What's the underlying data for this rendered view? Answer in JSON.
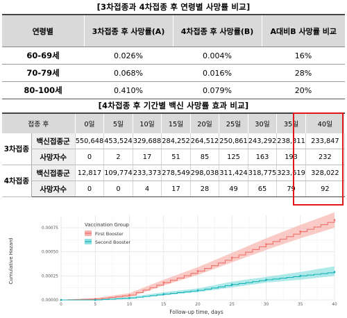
{
  "table1": {
    "caption": "[3차접종과 4차접종 후 연령별 사망률 비교]",
    "headers": [
      "연령별",
      "3차접종 후 사망률(A)",
      "4차접종 후 사망률(B)",
      "A대비B 사망률 비교"
    ],
    "rows": [
      {
        "label": "60-69세",
        "a": "0.026%",
        "b": "0.004%",
        "ratio": "16%"
      },
      {
        "label": "70-79세",
        "a": "0.068%",
        "b": "0.016%",
        "ratio": "28%"
      },
      {
        "label": "80-100세",
        "a": "0.410%",
        "b": "0.079%",
        "ratio": "20%"
      }
    ]
  },
  "table2": {
    "caption": "[4차접종 후 기간별 백신 사망률 효과 비교]",
    "corner": "접종 후",
    "days": [
      "0일",
      "5일",
      "10일",
      "15일",
      "20일",
      "25일",
      "30일",
      "35일",
      "40일"
    ],
    "groups": [
      {
        "name": "3차접종",
        "rows": [
          {
            "label": "백신접종군",
            "values": [
              "550,648",
              "453,524",
              "329,688",
              "284,252",
              "264,512",
              "250,861",
              "243,292",
              "238,311",
              "233,847"
            ]
          },
          {
            "label": "사망자수",
            "values": [
              "0",
              "2",
              "17",
              "51",
              "85",
              "125",
              "163",
              "193",
              "232"
            ]
          }
        ]
      },
      {
        "name": "4차접종",
        "rows": [
          {
            "label": "백신접종군",
            "values": [
              "12,817",
              "109,774",
              "233,373",
              "278,549",
              "298,038",
              "311,424",
              "318,775",
              "323,619",
              "328,022"
            ]
          },
          {
            "label": "사망자수",
            "values": [
              "0",
              "0",
              "4",
              "17",
              "28",
              "49",
              "65",
              "79",
              "92"
            ]
          }
        ]
      }
    ],
    "highlight_color": "#e0161a"
  },
  "chart_data": {
    "type": "line",
    "title": "",
    "xlabel": "Follow-up time, days",
    "ylabel": "Cumulative Hazard",
    "xlim": [
      0,
      40
    ],
    "ylim": [
      0,
      0.00088
    ],
    "x_ticks": [
      0,
      5,
      10,
      15,
      20,
      25,
      30,
      35,
      40
    ],
    "y_ticks": [
      0.0,
      0.00025,
      0.0005,
      0.00075
    ],
    "y_tick_labels": [
      "0.00000",
      "0.00025",
      "0.00050",
      "0.00075"
    ],
    "legend": {
      "title": "Vaccination Group",
      "position": "top-left"
    },
    "grid": true,
    "series": [
      {
        "name": "First Booster",
        "color": "#f0706a",
        "band_color": "#f6b3ae",
        "x": [
          0,
          5,
          10,
          15,
          20,
          25,
          30,
          35,
          40
        ],
        "values": [
          0.0,
          1e-05,
          5e-05,
          0.00018,
          0.0003,
          0.00044,
          0.00058,
          0.00071,
          0.00083
        ],
        "lower": [
          0.0,
          4e-06,
          3e-05,
          0.00015,
          0.00026,
          0.00039,
          0.00052,
          0.00064,
          0.00075
        ],
        "upper": [
          0.0,
          2e-05,
          7e-05,
          0.00021,
          0.00034,
          0.00049,
          0.00064,
          0.00078,
          0.00091
        ]
      },
      {
        "name": "Second Booster",
        "color": "#17b3b8",
        "band_color": "#8fe0df",
        "x": [
          0,
          5,
          10,
          15,
          20,
          25,
          30,
          35,
          40
        ],
        "values": [
          0.0,
          0.0,
          2e-05,
          6e-05,
          0.0001,
          0.00016,
          0.00021,
          0.00025,
          0.00029
        ],
        "lower": [
          0.0,
          0.0,
          1e-05,
          5e-05,
          8e-05,
          0.00013,
          0.00018,
          0.00021,
          0.00025
        ],
        "upper": [
          0.0,
          5e-06,
          3e-05,
          8e-05,
          0.00012,
          0.00019,
          0.00024,
          0.00029,
          0.00035
        ]
      }
    ]
  }
}
